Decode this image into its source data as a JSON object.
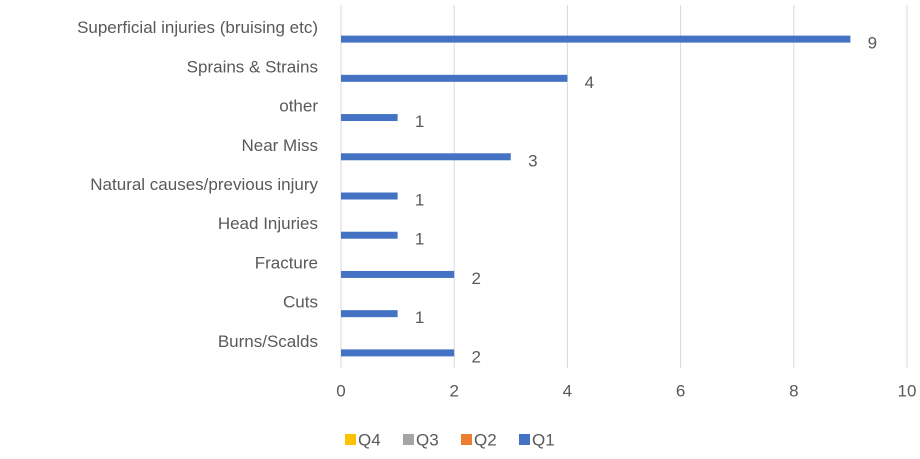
{
  "chart_data": {
    "type": "bar",
    "orientation": "horizontal",
    "categories": [
      "Superficial injuries (bruising etc)",
      "Sprains & Strains",
      "other",
      "Near Miss",
      "Natural causes/previous injury",
      "Head Injuries",
      "Fracture",
      "Cuts",
      "Burns/Scalds"
    ],
    "series": [
      {
        "name": "Q4",
        "color": "#ffc000",
        "values": [
          null,
          null,
          null,
          null,
          null,
          null,
          null,
          null,
          null
        ]
      },
      {
        "name": "Q3",
        "color": "#a5a5a5",
        "values": [
          null,
          null,
          null,
          null,
          null,
          null,
          null,
          null,
          null
        ]
      },
      {
        "name": "Q2",
        "color": "#ed7d31",
        "values": [
          null,
          null,
          null,
          null,
          null,
          null,
          null,
          null,
          null
        ]
      },
      {
        "name": "Q1",
        "color": "#4472c4",
        "values": [
          9,
          4,
          1,
          3,
          1,
          1,
          2,
          1,
          2
        ]
      }
    ],
    "xlim": [
      0,
      10
    ],
    "xticks": [
      0,
      2,
      4,
      6,
      8,
      10
    ],
    "grid": true,
    "legend": "bottom"
  }
}
